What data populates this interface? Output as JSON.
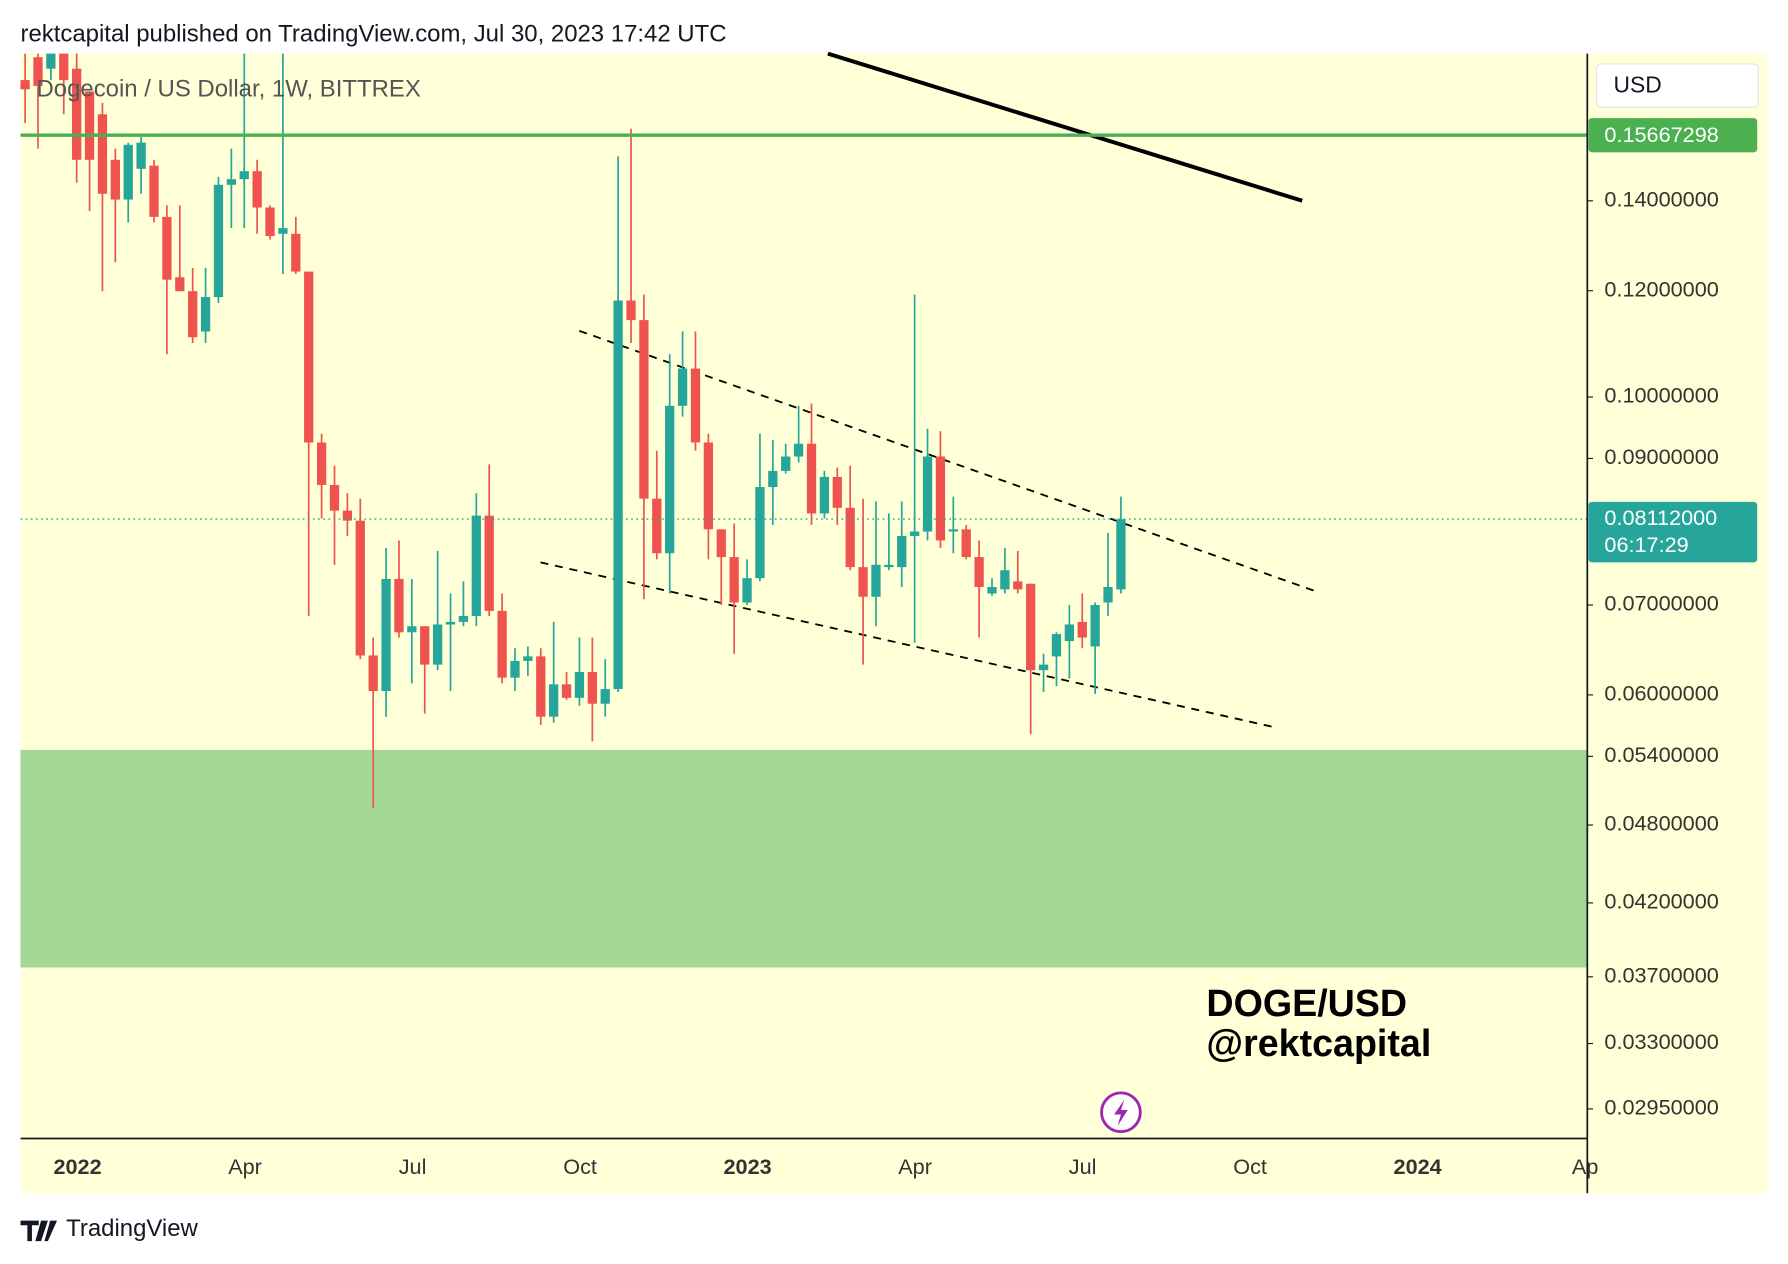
{
  "header": "rektcapital published on TradingView.com, Jul 30, 2023 17:42 UTC",
  "footer": "TradingView",
  "chart_data": {
    "type": "candlestick",
    "title": "Dogecoin / US Dollar, 1W, BITTREX",
    "currency": "USD",
    "watermark": [
      "DOGE/USD",
      "@rektcapital"
    ],
    "log_scale": true,
    "grid": false,
    "ylim": [
      0.02804,
      0.1802
    ],
    "yticks": [
      {
        "value": 0.14,
        "label": "0.14000000"
      },
      {
        "value": 0.12,
        "label": "0.12000000"
      },
      {
        "value": 0.1,
        "label": "0.10000000"
      },
      {
        "value": 0.09,
        "label": "0.09000000"
      },
      {
        "value": 0.07,
        "label": "0.07000000"
      },
      {
        "value": 0.06,
        "label": "0.06000000"
      },
      {
        "value": 0.054,
        "label": "0.05400000"
      },
      {
        "value": 0.048,
        "label": "0.04800000"
      },
      {
        "value": 0.042,
        "label": "0.04200000"
      },
      {
        "value": 0.037,
        "label": "0.03700000"
      },
      {
        "value": 0.033,
        "label": "0.03300000"
      },
      {
        "value": 0.0295,
        "label": "0.02950000"
      }
    ],
    "xticks": [
      "2022",
      "Apr",
      "Jul",
      "Oct",
      "2023",
      "Apr",
      "Jul",
      "Oct",
      "2024",
      "Ap"
    ],
    "up_color": "#26a69a",
    "down_color": "#ef5350",
    "level": {
      "value": 0.15667298,
      "label": "0.15667298",
      "color": "#4caf50"
    },
    "last_price": {
      "value": 0.08112,
      "label": "0.08112000",
      "countdown": "06:17:29",
      "color": "#26a69a"
    },
    "support_zone": {
      "low": 0.0376,
      "high": 0.0546,
      "color": "#a5d894"
    },
    "open": [
      0.1722,
      0.1791,
      0.1756,
      0.1802,
      0.1756,
      0.1689,
      0.1624,
      0.1502,
      0.1403,
      0.1479,
      0.1487,
      0.1362,
      0.1228,
      0.1199,
      0.1119,
      0.1187,
      0.1439,
      0.1453,
      0.1473,
      0.1384,
      0.1323,
      0.1323,
      0.124,
      0.0925,
      0.086,
      0.0823,
      0.0809,
      0.0642,
      0.0604,
      0.0732,
      0.0668,
      0.0675,
      0.0632,
      0.0677,
      0.068,
      0.0687,
      0.0816,
      0.0693,
      0.0618,
      0.0636,
      0.0641,
      0.0578,
      0.0611,
      0.0597,
      0.0624,
      0.0591,
      0.0606,
      0.118,
      0.1141,
      0.084,
      0.0765,
      0.0985,
      0.105,
      0.0925,
      0.0797,
      0.076,
      0.0703,
      0.0733,
      0.0857,
      0.0881,
      0.0903,
      0.0923,
      0.0819,
      0.0872,
      0.0827,
      0.0747,
      0.071,
      0.0747,
      0.0747,
      0.0788,
      0.0794,
      0.0903,
      0.0794,
      0.0797,
      0.076,
      0.0714,
      0.0719,
      0.0729,
      0.0726,
      0.0626,
      0.0641,
      0.0658,
      0.068,
      0.0652,
      0.0703,
      0.0719
    ],
    "high": [
      0.1802,
      0.1802,
      0.1802,
      0.1802,
      0.1802,
      0.1689,
      0.1656,
      0.1531,
      0.1547,
      0.1562,
      0.1502,
      0.1389,
      0.1389,
      0.1248,
      0.1248,
      0.1459,
      0.1531,
      0.1802,
      0.1502,
      0.1389,
      0.1802,
      0.1362,
      0.124,
      0.0939,
      0.0889,
      0.0848,
      0.084,
      0.0662,
      0.0772,
      0.0782,
      0.0732,
      0.0675,
      0.0768,
      0.0714,
      0.0729,
      0.0848,
      0.0891,
      0.0714,
      0.065,
      0.0652,
      0.065,
      0.068,
      0.0624,
      0.0662,
      0.0662,
      0.0638,
      0.1511,
      0.1584,
      0.1192,
      0.0912,
      0.1076,
      0.1119,
      0.1119,
      0.0939,
      0.0797,
      0.0805,
      0.0757,
      0.0939,
      0.0929,
      0.0923,
      0.0985,
      0.0989,
      0.0881,
      0.0886,
      0.0889,
      0.084,
      0.0836,
      0.0819,
      0.0836,
      0.1192,
      0.0947,
      0.0943,
      0.0843,
      0.0803,
      0.0782,
      0.0733,
      0.0772,
      0.0768,
      0.0726,
      0.0644,
      0.0668,
      0.07,
      0.0714,
      0.0703,
      0.0792,
      0.0843
    ],
    "low": [
      0.16,
      0.1531,
      0.1722,
      0.1624,
      0.1444,
      0.1376,
      0.1199,
      0.126,
      0.1349,
      0.1417,
      0.1349,
      0.1076,
      0.1199,
      0.1097,
      0.1097,
      0.1175,
      0.1336,
      0.1336,
      0.1323,
      0.131,
      0.1235,
      0.1235,
      0.0687,
      0.0812,
      0.075,
      0.0788,
      0.0638,
      0.0494,
      0.0578,
      0.0662,
      0.0612,
      0.0581,
      0.0626,
      0.0604,
      0.0675,
      0.0675,
      0.0687,
      0.0612,
      0.0604,
      0.062,
      0.057,
      0.0572,
      0.0595,
      0.0589,
      0.0554,
      0.0578,
      0.0603,
      0.1097,
      0.0707,
      0.0757,
      0.0714,
      0.0967,
      0.0912,
      0.0757,
      0.07,
      0.0644,
      0.07,
      0.0729,
      0.0803,
      0.0877,
      0.0894,
      0.0803,
      0.0812,
      0.0803,
      0.0743,
      0.0632,
      0.0675,
      0.0743,
      0.0722,
      0.0656,
      0.0782,
      0.0772,
      0.0765,
      0.0757,
      0.0662,
      0.0711,
      0.0714,
      0.0714,
      0.0561,
      0.0603,
      0.0609,
      0.0617,
      0.065,
      0.0601,
      0.0687,
      0.0714
    ],
    "close": [
      0.1695,
      0.1705,
      0.1802,
      0.1722,
      0.1502,
      0.1502,
      0.1417,
      0.1403,
      0.1541,
      0.1547,
      0.1362,
      0.1223,
      0.1199,
      0.1108,
      0.1187,
      0.1439,
      0.1453,
      0.1473,
      0.1384,
      0.1318,
      0.1336,
      0.124,
      0.0925,
      0.086,
      0.0823,
      0.0809,
      0.0642,
      0.0604,
      0.0732,
      0.0668,
      0.0675,
      0.0632,
      0.0677,
      0.068,
      0.0687,
      0.0816,
      0.0693,
      0.0618,
      0.0636,
      0.0641,
      0.0578,
      0.0611,
      0.0597,
      0.0624,
      0.0591,
      0.0606,
      0.118,
      0.1141,
      0.084,
      0.0765,
      0.0985,
      0.105,
      0.0925,
      0.0797,
      0.076,
      0.0703,
      0.0733,
      0.0857,
      0.0881,
      0.0903,
      0.0923,
      0.0819,
      0.0872,
      0.0827,
      0.0747,
      0.071,
      0.075,
      0.075,
      0.0788,
      0.0794,
      0.0903,
      0.0782,
      0.0797,
      0.076,
      0.0722,
      0.0722,
      0.0743,
      0.0719,
      0.0626,
      0.0632,
      0.0666,
      0.0677,
      0.0662,
      0.07,
      0.0722,
      0.0811
    ]
  }
}
